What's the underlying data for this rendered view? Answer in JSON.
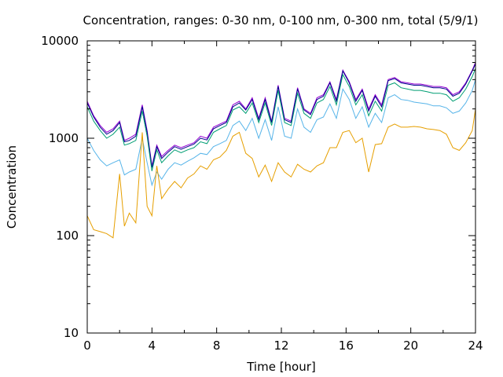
{
  "chart_data": {
    "type": "line",
    "title": "Concentration, ranges: 0-30 nm, 0-100 nm, 0-300 nm, total (5/9/1)",
    "xlabel": "Time [hour]",
    "ylabel": "Concentration",
    "xlim": [
      0,
      24
    ],
    "ylim": [
      10,
      10000
    ],
    "yscale": "log",
    "grid": false,
    "legend": "none",
    "x_ticks": [
      "0",
      "4",
      "8",
      "12",
      "16",
      "20",
      "24"
    ],
    "y_ticks": [
      "10",
      "100",
      "1000",
      "10000"
    ],
    "x": [
      0,
      0.4,
      0.8,
      1.2,
      1.6,
      2.0,
      2.3,
      2.6,
      3.0,
      3.4,
      3.7,
      4.0,
      4.3,
      4.6,
      5.0,
      5.4,
      5.8,
      6.2,
      6.6,
      7.0,
      7.4,
      7.8,
      8.2,
      8.6,
      9.0,
      9.4,
      9.8,
      10.2,
      10.6,
      11.0,
      11.4,
      11.8,
      12.2,
      12.6,
      13.0,
      13.4,
      13.8,
      14.2,
      14.6,
      15.0,
      15.4,
      15.8,
      16.2,
      16.6,
      17.0,
      17.4,
      17.8,
      18.2,
      18.6,
      19.0,
      19.4,
      19.8,
      20.2,
      20.6,
      21.0,
      21.4,
      21.8,
      22.2,
      22.6,
      23.0,
      23.4,
      23.8,
      24.0
    ],
    "series": [
      {
        "color": "#9400d3",
        "values": [
          2400,
          1700,
          1350,
          1150,
          1250,
          1500,
          950,
          1000,
          1100,
          2200,
          1200,
          520,
          850,
          650,
          750,
          850,
          800,
          850,
          900,
          1050,
          1000,
          1300,
          1400,
          1500,
          2200,
          2400,
          2000,
          2600,
          1600,
          2600,
          1500,
          3500,
          1600,
          1500,
          3300,
          2000,
          1800,
          2600,
          2800,
          3800,
          2500,
          5000,
          3800,
          2500,
          3200,
          2000,
          2800,
          2200,
          4000,
          4200,
          3800,
          3700,
          3600,
          3600,
          3500,
          3400,
          3400,
          3300,
          2800,
          3000,
          3700,
          5000,
          6000
        ]
      },
      {
        "color": "#00008b",
        "values": [
          2300,
          1650,
          1300,
          1100,
          1200,
          1450,
          920,
          950,
          1050,
          2100,
          1150,
          500,
          820,
          620,
          720,
          820,
          770,
          820,
          870,
          1000,
          960,
          1250,
          1350,
          1450,
          2100,
          2300,
          1950,
          2500,
          1550,
          2500,
          1450,
          3400,
          1550,
          1450,
          3200,
          1950,
          1750,
          2500,
          2700,
          3700,
          2400,
          4900,
          3700,
          2400,
          3100,
          1900,
          2700,
          2100,
          3900,
          4100,
          3700,
          3600,
          3500,
          3500,
          3400,
          3300,
          3300,
          3200,
          2700,
          2900,
          3600,
          4900,
          5800
        ]
      },
      {
        "color": "#009e73",
        "values": [
          2100,
          1500,
          1200,
          1000,
          1100,
          1300,
          850,
          880,
          950,
          1900,
          1050,
          460,
          760,
          560,
          660,
          760,
          710,
          760,
          800,
          920,
          880,
          1150,
          1250,
          1350,
          1950,
          2100,
          1800,
          2300,
          1450,
          2300,
          1350,
          3100,
          1450,
          1350,
          2900,
          1800,
          1600,
          2300,
          2500,
          3400,
          2200,
          4500,
          3400,
          2200,
          2800,
          1700,
          2400,
          1900,
          3500,
          3700,
          3300,
          3200,
          3100,
          3100,
          3000,
          2900,
          2900,
          2800,
          2400,
          2600,
          3200,
          4300,
          5200
        ]
      },
      {
        "color": "#56b4e9",
        "values": [
          1000,
          750,
          600,
          520,
          560,
          600,
          420,
          450,
          480,
          1000,
          560,
          330,
          450,
          380,
          480,
          560,
          530,
          580,
          630,
          700,
          680,
          820,
          880,
          950,
          1350,
          1500,
          1200,
          1600,
          1000,
          1550,
          950,
          2100,
          1050,
          1000,
          2000,
          1300,
          1150,
          1550,
          1650,
          2250,
          1600,
          3200,
          2500,
          1600,
          2100,
          1300,
          1800,
          1450,
          2600,
          2800,
          2500,
          2450,
          2350,
          2300,
          2250,
          2150,
          2150,
          2050,
          1800,
          1900,
          2300,
          3100,
          4000
        ]
      },
      {
        "color": "#e69f00",
        "values": [
          160,
          115,
          110,
          105,
          95,
          430,
          125,
          170,
          135,
          1150,
          200,
          160,
          520,
          240,
          300,
          360,
          310,
          390,
          430,
          520,
          480,
          600,
          640,
          750,
          1050,
          1150,
          700,
          620,
          400,
          530,
          360,
          560,
          450,
          400,
          540,
          480,
          450,
          520,
          560,
          800,
          800,
          1150,
          1200,
          900,
          1000,
          450,
          860,
          880,
          1300,
          1400,
          1300,
          1300,
          1320,
          1300,
          1250,
          1230,
          1200,
          1100,
          800,
          750,
          900,
          1200,
          2000
        ]
      }
    ]
  }
}
